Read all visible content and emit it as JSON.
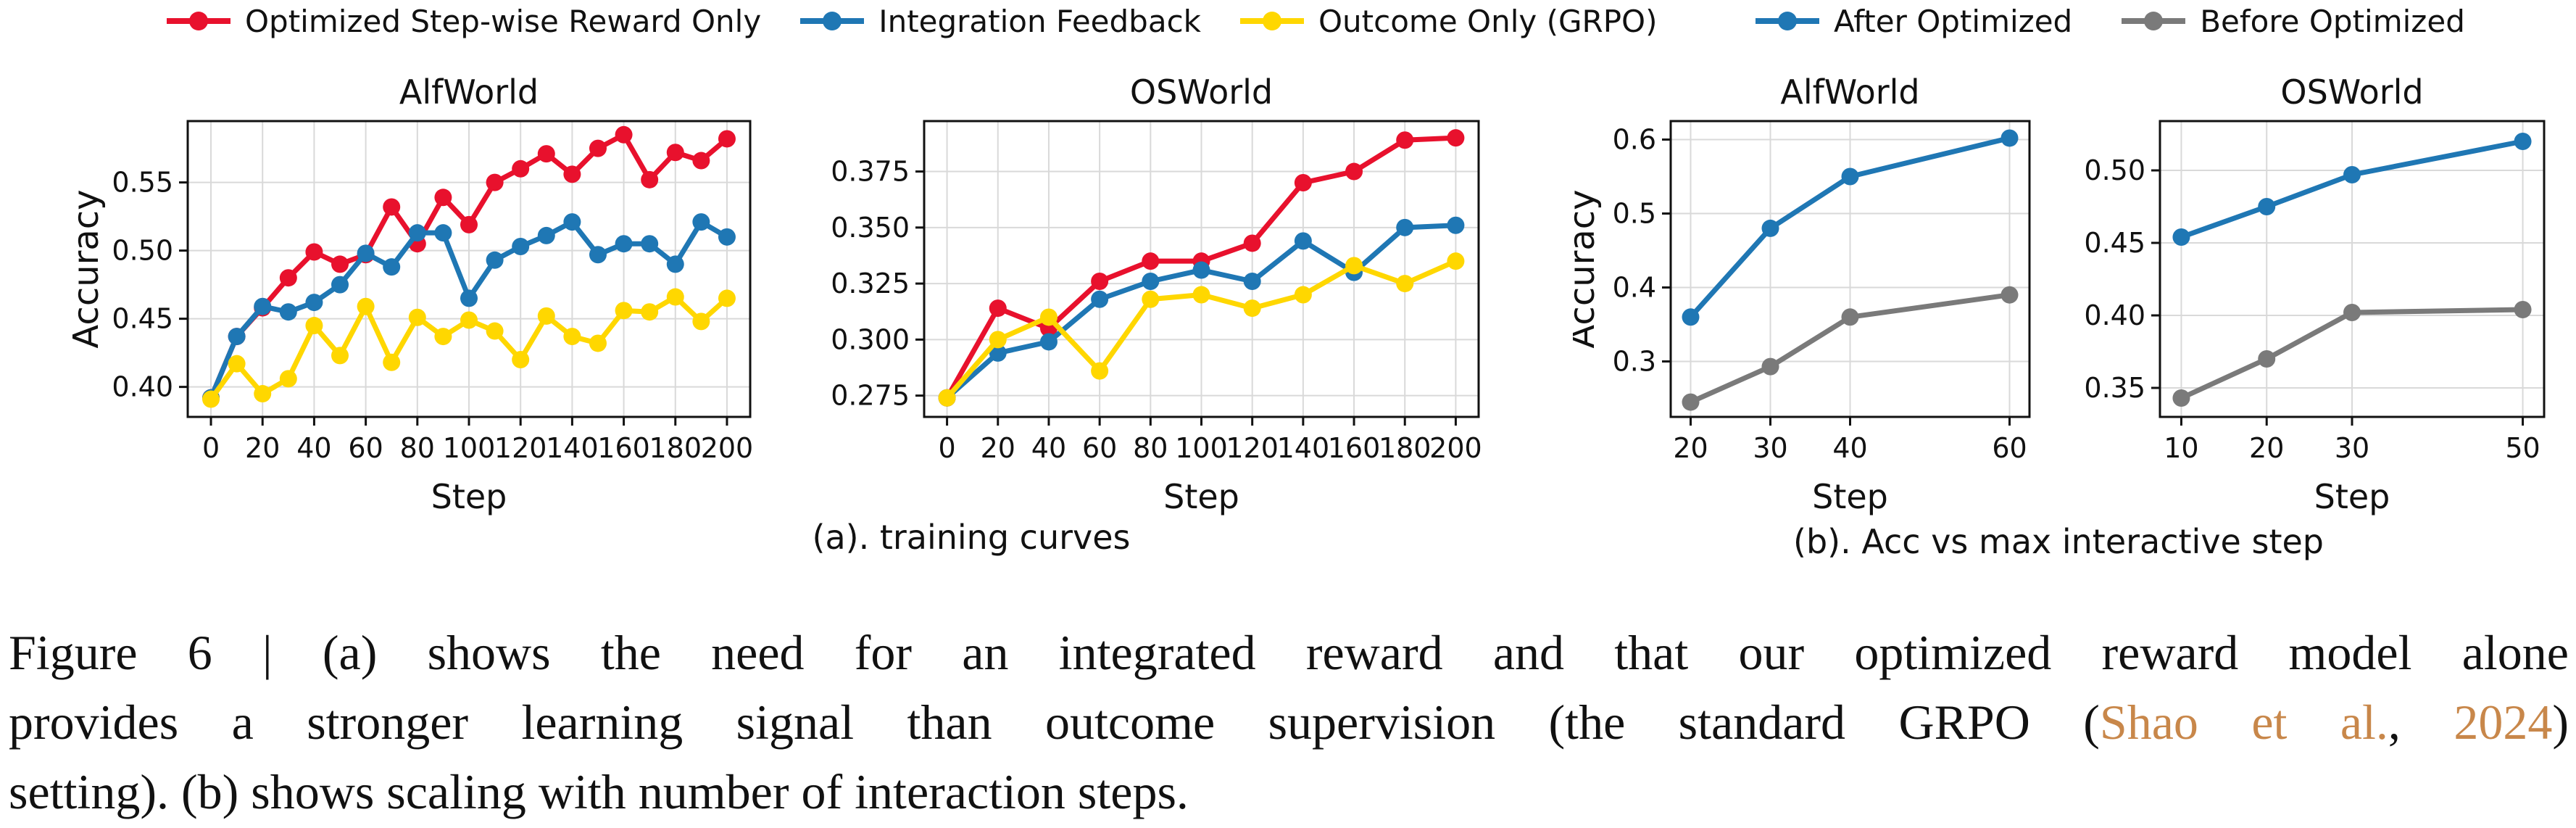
{
  "figure": {
    "legends": [
      {
        "name": "training-curves-legend",
        "items": [
          {
            "label": "Optimized Step-wise Reward Only",
            "color": "#e8112d"
          },
          {
            "label": "Integration Feedback",
            "color": "#1f77b4"
          },
          {
            "label": "Outcome Only (GRPO)",
            "color": "#ffd700"
          }
        ]
      },
      {
        "name": "interactive-step-legend",
        "items": [
          {
            "label": "After Optimized",
            "color": "#1f77b4"
          },
          {
            "label": "Before Optimized",
            "color": "#7a7a7a"
          }
        ]
      }
    ],
    "subcaptions": [
      "(a). training curves",
      "(b). Acc vs max interactive step"
    ],
    "caption": {
      "citation_color": "#c8874a",
      "lines": [
        [
          {
            "t": "Figure 6 | (a) shows the need for an integrated reward and that our optimized reward model alone"
          }
        ],
        [
          {
            "t": "provides a stronger learning signal than outcome supervision (the standard GRPO ("
          },
          {
            "t": "Shao et al.",
            "cite": true
          },
          {
            "t": ", "
          },
          {
            "t": "2024",
            "cite": true
          },
          {
            "t": ")"
          }
        ],
        [
          {
            "t": "setting). (b) shows scaling with number of interaction steps."
          }
        ]
      ]
    }
  },
  "chart_data": [
    {
      "type": "line",
      "title": "AlfWorld",
      "xlabel": "Step",
      "ylabel": "Accuracy",
      "x": [
        0,
        10,
        20,
        30,
        40,
        50,
        60,
        70,
        80,
        90,
        100,
        110,
        120,
        130,
        140,
        150,
        160,
        170,
        180,
        190,
        200
      ],
      "xlim": [
        -9,
        209
      ],
      "ylim": [
        0.378,
        0.595
      ],
      "grid": true,
      "xticks": [
        {
          "v": 0,
          "label": "0"
        },
        {
          "v": 20,
          "label": "20"
        },
        {
          "v": 40,
          "label": "40"
        },
        {
          "v": 60,
          "label": "60"
        },
        {
          "v": 80,
          "label": "80"
        },
        {
          "v": 100,
          "label": "100"
        },
        {
          "v": 120,
          "label": "120"
        },
        {
          "v": 140,
          "label": "140"
        },
        {
          "v": 160,
          "label": "160"
        },
        {
          "v": 180,
          "label": "180"
        },
        {
          "v": 200,
          "label": "200"
        }
      ],
      "yticks": [
        {
          "v": 0.4,
          "label": "0.40"
        },
        {
          "v": 0.45,
          "label": "0.45"
        },
        {
          "v": 0.5,
          "label": "0.50"
        },
        {
          "v": 0.55,
          "label": "0.55"
        }
      ],
      "series": [
        {
          "name": "Optimized Step-wise Reward Only",
          "color": "#e8112d",
          "values": [
            0.392,
            0.437,
            0.458,
            0.48,
            0.499,
            0.49,
            0.497,
            0.532,
            0.505,
            0.539,
            0.519,
            0.55,
            0.56,
            0.571,
            0.556,
            0.575,
            0.585,
            0.552,
            0.572,
            0.566,
            0.582
          ]
        },
        {
          "name": "Integration Feedback",
          "color": "#1f77b4",
          "values": [
            0.392,
            0.437,
            0.459,
            0.455,
            0.462,
            0.475,
            0.498,
            0.488,
            0.513,
            0.513,
            0.465,
            0.493,
            0.503,
            0.511,
            0.521,
            0.497,
            0.505,
            0.505,
            0.49,
            0.521,
            0.51
          ]
        },
        {
          "name": "Outcome Only (GRPO)",
          "color": "#ffd700",
          "values": [
            0.391,
            0.417,
            0.395,
            0.406,
            0.445,
            0.423,
            0.459,
            0.418,
            0.451,
            0.437,
            0.449,
            0.441,
            0.42,
            0.452,
            0.437,
            0.432,
            0.456,
            0.455,
            0.466,
            0.448,
            0.465
          ]
        }
      ]
    },
    {
      "type": "line",
      "title": "OSWorld",
      "xlabel": "Step",
      "ylabel": "",
      "x": [
        0,
        20,
        40,
        60,
        80,
        100,
        120,
        140,
        160,
        180,
        200
      ],
      "xlim": [
        -9,
        209
      ],
      "ylim": [
        0.2655,
        0.3975
      ],
      "grid": true,
      "xticks": [
        {
          "v": 0,
          "label": "0"
        },
        {
          "v": 20,
          "label": "20"
        },
        {
          "v": 40,
          "label": "40"
        },
        {
          "v": 60,
          "label": "60"
        },
        {
          "v": 80,
          "label": "80"
        },
        {
          "v": 100,
          "label": "100"
        },
        {
          "v": 120,
          "label": "120"
        },
        {
          "v": 140,
          "label": "140"
        },
        {
          "v": 160,
          "label": "160"
        },
        {
          "v": 180,
          "label": "180"
        },
        {
          "v": 200,
          "label": "200"
        }
      ],
      "yticks": [
        {
          "v": 0.275,
          "label": "0.275"
        },
        {
          "v": 0.3,
          "label": "0.300"
        },
        {
          "v": 0.325,
          "label": "0.325"
        },
        {
          "v": 0.35,
          "label": "0.350"
        },
        {
          "v": 0.375,
          "label": "0.375"
        }
      ],
      "series": [
        {
          "name": "Optimized Step-wise Reward Only",
          "color": "#e8112d",
          "values": [
            0.274,
            0.314,
            0.305,
            0.326,
            0.335,
            0.335,
            0.343,
            0.37,
            0.375,
            0.389,
            0.39
          ]
        },
        {
          "name": "Integration Feedback",
          "color": "#1f77b4",
          "values": [
            0.274,
            0.294,
            0.299,
            0.318,
            0.326,
            0.331,
            0.326,
            0.344,
            0.33,
            0.35,
            0.351
          ]
        },
        {
          "name": "Outcome Only (GRPO)",
          "color": "#ffd700",
          "values": [
            0.274,
            0.3,
            0.31,
            0.286,
            0.318,
            0.32,
            0.314,
            0.32,
            0.333,
            0.325,
            0.335
          ]
        }
      ]
    },
    {
      "type": "line",
      "title": "AlfWorld",
      "xlabel": "Step",
      "ylabel": "Accuracy",
      "x": [
        20,
        30,
        40,
        60
      ],
      "xlim": [
        17.5,
        62.5
      ],
      "ylim": [
        0.225,
        0.625
      ],
      "grid": true,
      "xticks": [
        {
          "v": 20,
          "label": "20"
        },
        {
          "v": 30,
          "label": "30"
        },
        {
          "v": 40,
          "label": "40"
        },
        {
          "v": 60,
          "label": "60"
        }
      ],
      "yticks": [
        {
          "v": 0.3,
          "label": "0.3"
        },
        {
          "v": 0.4,
          "label": "0.4"
        },
        {
          "v": 0.5,
          "label": "0.5"
        },
        {
          "v": 0.6,
          "label": "0.6"
        }
      ],
      "series": [
        {
          "name": "After Optimized",
          "color": "#1f77b4",
          "values": [
            0.36,
            0.48,
            0.55,
            0.602
          ]
        },
        {
          "name": "Before Optimized",
          "color": "#7a7a7a",
          "values": [
            0.245,
            0.293,
            0.36,
            0.39
          ]
        }
      ]
    },
    {
      "type": "line",
      "title": "OSWorld",
      "xlabel": "Step",
      "ylabel": "",
      "x": [
        10,
        20,
        30,
        50
      ],
      "xlim": [
        7.5,
        52.5
      ],
      "ylim": [
        0.33,
        0.534
      ],
      "grid": true,
      "xticks": [
        {
          "v": 10,
          "label": "10"
        },
        {
          "v": 20,
          "label": "20"
        },
        {
          "v": 30,
          "label": "30"
        },
        {
          "v": 50,
          "label": "50"
        }
      ],
      "yticks": [
        {
          "v": 0.35,
          "label": "0.35"
        },
        {
          "v": 0.4,
          "label": "0.40"
        },
        {
          "v": 0.45,
          "label": "0.45"
        },
        {
          "v": 0.5,
          "label": "0.50"
        }
      ],
      "series": [
        {
          "name": "After Optimized",
          "color": "#1f77b4",
          "values": [
            0.454,
            0.475,
            0.497,
            0.52
          ]
        },
        {
          "name": "Before Optimized",
          "color": "#7a7a7a",
          "values": [
            0.343,
            0.37,
            0.402,
            0.404
          ]
        }
      ]
    }
  ]
}
